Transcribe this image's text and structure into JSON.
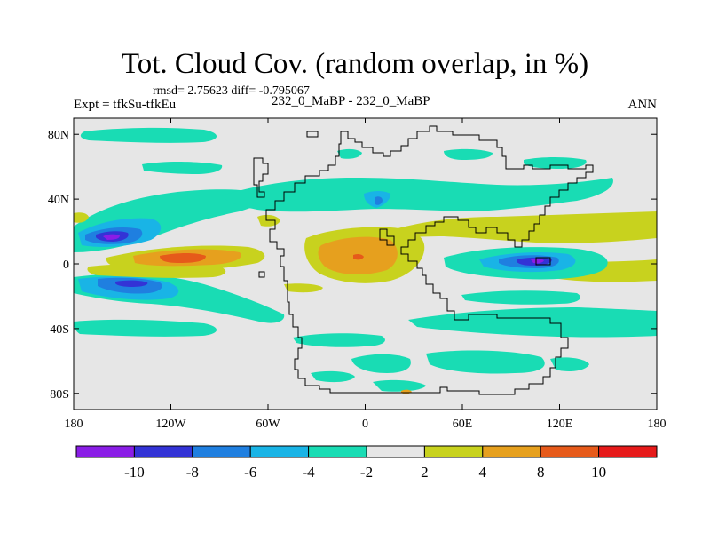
{
  "title": "Tot. Cloud Cov. (random overlap, in %)",
  "stats": "rmsd= 2.75623 diff= -0.795067",
  "left_label": "Expt = tfkSu-tfkEu",
  "center_label": "232_0_MaBP - 232_0_MaBP",
  "right_label": "ANN",
  "x_ticks": [
    {
      "lon": -180,
      "label": "180"
    },
    {
      "lon": -120,
      "label": "120W"
    },
    {
      "lon": -60,
      "label": "60W"
    },
    {
      "lon": 0,
      "label": "0"
    },
    {
      "lon": 60,
      "label": "60E"
    },
    {
      "lon": 120,
      "label": "120E"
    },
    {
      "lon": 180,
      "label": "180"
    }
  ],
  "y_ticks": [
    {
      "lat": 80,
      "label": "80N"
    },
    {
      "lat": 40,
      "label": "40N"
    },
    {
      "lat": 0,
      "label": "0"
    },
    {
      "lat": -40,
      "label": "40S"
    },
    {
      "lat": -80,
      "label": "80S"
    }
  ],
  "colorbar": {
    "colors": [
      "#8a1de6",
      "#3333d6",
      "#1f7fe0",
      "#19b4e6",
      "#19dcb4",
      "#e6e6e6",
      "#c8d21e",
      "#e6a01e",
      "#e65a1a",
      "#e61a1a"
    ],
    "labels": [
      "-10",
      "-8",
      "-6",
      "-4",
      "-2",
      "2",
      "4",
      "8",
      "10"
    ]
  },
  "colors": {
    "background": "#e6e6e6",
    "coast": "#000000"
  }
}
